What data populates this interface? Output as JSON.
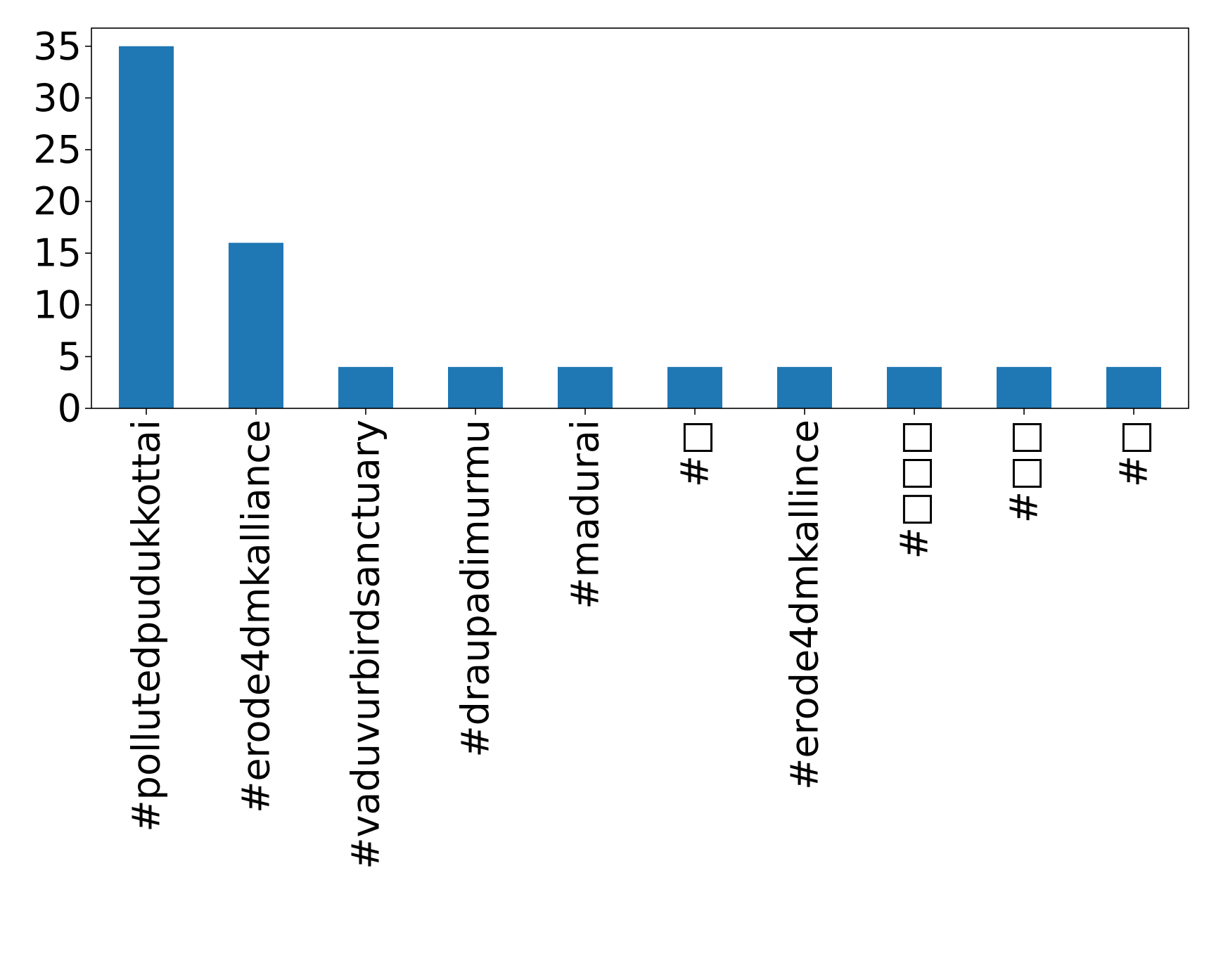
{
  "chart_data": {
    "type": "bar",
    "title": "",
    "xlabel": "",
    "ylabel": "",
    "categories": [
      "#pollutedpudukkottai",
      "#erode4dmkalliance",
      "#vaduvurbirdsanctuary",
      "#draupadimurmu",
      "#madurai",
      "#□",
      "#erode4dmkallince",
      "#□□□",
      "#□□",
      "#□"
    ],
    "series": [
      {
        "values": [
          35,
          16,
          4,
          4,
          4,
          4,
          4,
          4,
          4,
          4
        ]
      }
    ],
    "ylim": [
      0,
      36.75
    ],
    "yticks": [
      0,
      5,
      10,
      15,
      20,
      25,
      30,
      35
    ],
    "grid": false,
    "legend": "none",
    "bar_color": "#1f77b4"
  }
}
